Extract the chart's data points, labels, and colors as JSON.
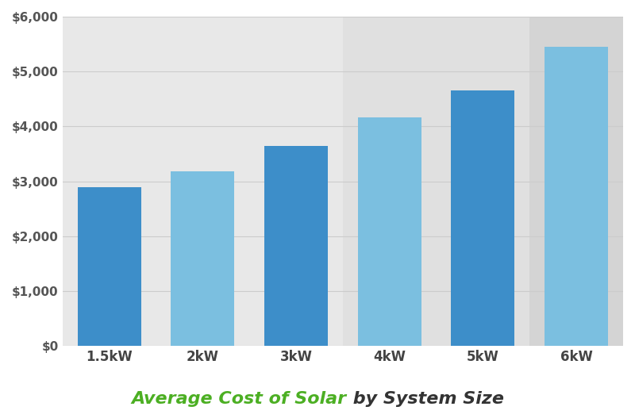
{
  "categories": [
    "1.5kW",
    "2kW",
    "3kW",
    "4kW",
    "5kW",
    "6kW"
  ],
  "values": [
    2900,
    3180,
    3650,
    4170,
    4650,
    5450
  ],
  "bar_colors": [
    "#3d8ec9",
    "#7bbfe0",
    "#3d8ec9",
    "#7bbfe0",
    "#3d8ec9",
    "#7bbfe0"
  ],
  "band_colors": [
    "#e8e8e8",
    "#e8e8e8",
    "#e8e8e8",
    "#e0e0e0",
    "#e0e0e0",
    "#d4d4d4"
  ],
  "ylim": [
    0,
    6000
  ],
  "yticks": [
    0,
    1000,
    2000,
    3000,
    4000,
    5000,
    6000
  ],
  "ytick_labels": [
    "$0",
    "$1,000",
    "$2,000",
    "$3,000",
    "$4,000",
    "$5,000",
    "$6,000"
  ],
  "title_green": "Average Cost of Solar",
  "title_dark": " by System Size",
  "title_green_color": "#4caf23",
  "title_dark_color": "#333333",
  "title_fontsize": 16,
  "background_color": "#ffffff",
  "grid_color": "#cccccc"
}
